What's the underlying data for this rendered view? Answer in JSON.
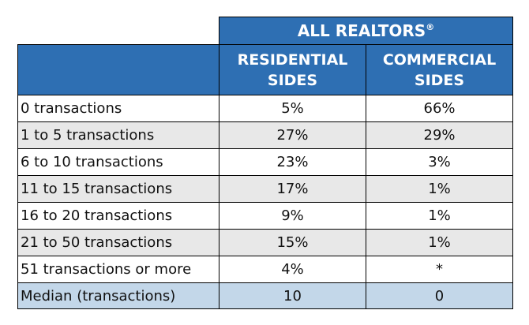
{
  "table": {
    "group_header": "ALL REALTORS",
    "group_header_mark": "®",
    "columns": [
      {
        "line1": "RESIDENTIAL",
        "line2": "SIDES"
      },
      {
        "line1": "COMMERCIAL",
        "line2": "SIDES"
      }
    ],
    "rows": [
      {
        "label": "0 transactions",
        "residential": "5%",
        "commercial": "66%"
      },
      {
        "label": "1 to 5 transactions",
        "residential": "27%",
        "commercial": "29%"
      },
      {
        "label": "6 to 10 transactions",
        "residential": "23%",
        "commercial": "3%"
      },
      {
        "label": "11 to 15 transactions",
        "residential": "17%",
        "commercial": "1%"
      },
      {
        "label": "16 to 20 transactions",
        "residential": "9%",
        "commercial": "1%"
      },
      {
        "label": "21 to 50 transactions",
        "residential": "15%",
        "commercial": "1%"
      },
      {
        "label": "51 transactions or more",
        "residential": "4%",
        "commercial": "*"
      },
      {
        "label": "Median (transactions)",
        "residential": "10",
        "commercial": "0"
      }
    ]
  },
  "colors": {
    "header_blue": "#2e6fb3",
    "stripe_gray": "#e8e8e8",
    "median_blue": "#c3d7e9"
  }
}
